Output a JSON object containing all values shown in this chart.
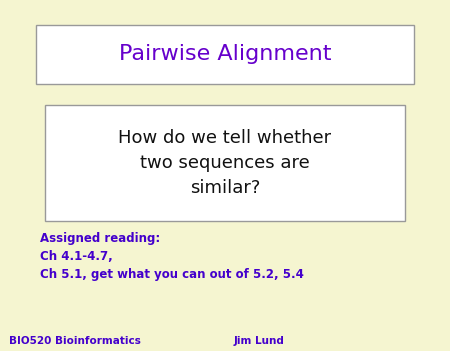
{
  "background_color": "#f5f5d0",
  "title_text": "Pairwise Alignment",
  "title_color": "#6600cc",
  "title_box_bg": "#ffffff",
  "title_box_edge": "#999999",
  "title_fontsize": 16,
  "question_text": "How do we tell whether\ntwo sequences are\nsimilar?",
  "question_color": "#111111",
  "question_box_bg": "#ffffff",
  "question_box_edge": "#999999",
  "question_fontsize": 13,
  "assigned_lines": "Assigned reading:\nCh 4.1-4.7,\nCh 5.1, get what you can out of 5.2, 5.4",
  "assigned_color": "#4400cc",
  "assigned_fontsize": 8.5,
  "footer_left": "BIO520 Bioinformatics",
  "footer_right": "Jim Lund",
  "footer_color": "#4400cc",
  "footer_fontsize": 7.5
}
